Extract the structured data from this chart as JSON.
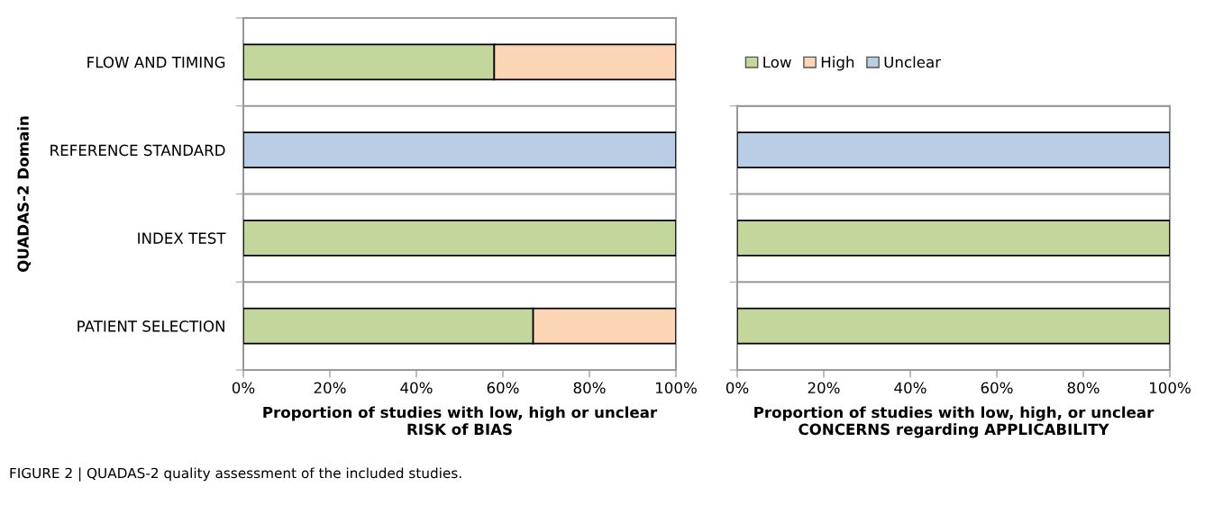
{
  "chart_data": [
    {
      "type": "bar",
      "orientation": "horizontal",
      "stacked": true,
      "ylabel": "QUADAS-2 Domain",
      "xlabel": "Proportion of studies with low, high or unclear\nRISK of BIAS",
      "categories": [
        "FLOW AND TIMING",
        "REFERENCE STANDARD",
        "INDEX TEST",
        "PATIENT SELECTION"
      ],
      "series": [
        {
          "name": "Low",
          "color": "#c3d69b",
          "values": [
            58,
            null,
            100,
            67
          ]
        },
        {
          "name": "High",
          "color": "#fcd5b5",
          "values": [
            42,
            null,
            null,
            33
          ]
        },
        {
          "name": "Unclear",
          "color": "#b9cde5",
          "values": [
            null,
            100,
            null,
            null
          ]
        }
      ],
      "xlim": [
        0,
        100
      ],
      "xticks": [
        {
          "value": 0,
          "label": "0%"
        },
        {
          "value": 20,
          "label": "20%"
        },
        {
          "value": 40,
          "label": "40%"
        },
        {
          "value": 60,
          "label": "60%"
        },
        {
          "value": 80,
          "label": "80%"
        },
        {
          "value": 100,
          "label": "100%"
        }
      ],
      "grid": "y",
      "legend": "top right",
      "annotations": [
        "FIGURE 2 | QUADAS-2 quality assessment of the included studies."
      ]
    },
    {
      "type": "bar",
      "orientation": "horizontal",
      "stacked": true,
      "xlabel": "Proportion of studies with low, high, or unclear\nCONCERNS regarding APPLICABILITY",
      "categories": [
        null,
        null,
        null
      ],
      "series": [
        {
          "color": "#c3d69b",
          "values": [
            null,
            100,
            100
          ]
        },
        {
          "color": "#b9cde5",
          "values": [
            100,
            null,
            null
          ]
        }
      ],
      "xlim": [
        0,
        100
      ],
      "xticks": [
        {
          "value": 0,
          "label": "0%"
        },
        {
          "value": 20,
          "label": "20%"
        },
        {
          "value": 40,
          "label": "40%"
        },
        {
          "value": 60,
          "label": "60%"
        },
        {
          "value": 80,
          "label": "80%"
        },
        {
          "value": 100,
          "label": "100%"
        }
      ],
      "grid": "y",
      "tick_labels": "x"
    }
  ]
}
